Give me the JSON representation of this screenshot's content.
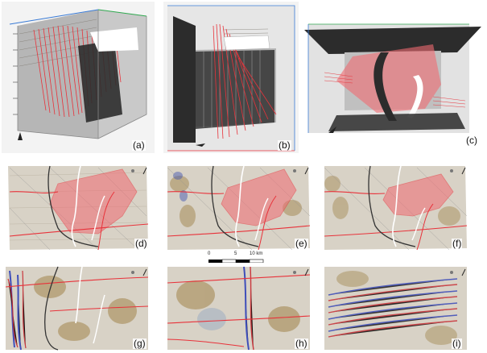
{
  "panels": [
    {
      "id": "a",
      "label": "(a)"
    },
    {
      "id": "b",
      "label": "(b)"
    },
    {
      "id": "c",
      "label": "(c)"
    },
    {
      "id": "d",
      "label": "(d)"
    },
    {
      "id": "e",
      "label": "(e)"
    },
    {
      "id": "f",
      "label": "(f)"
    },
    {
      "id": "g",
      "label": "(g)"
    },
    {
      "id": "h",
      "label": "(h)"
    },
    {
      "id": "i",
      "label": "(i)"
    }
  ],
  "scale_bar": {
    "start": "0",
    "mid": "5",
    "end": "10 km"
  },
  "colors": {
    "fault_red": "#e8323a",
    "fault_fill": "#f06a72",
    "dark_fault": "#333333",
    "white_fault": "#ffffff",
    "seismic_bg": "#d8d2c6",
    "box_gray": "#bfbfbf",
    "black_plane": "#2c2c2c"
  }
}
